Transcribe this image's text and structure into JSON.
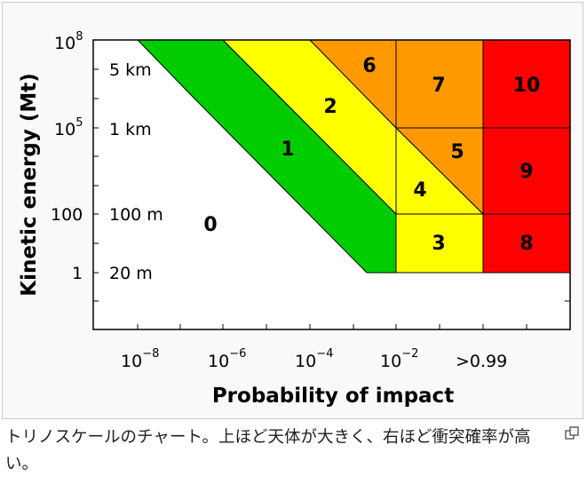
{
  "chart": {
    "xlabel": "Probability of impact",
    "ylabel": "Kinetic energy (Mt)",
    "y_ticks": [
      {
        "base": "10",
        "exp": "8"
      },
      {
        "base": "10",
        "exp": "5"
      },
      {
        "base": "100",
        "exp": ""
      },
      {
        "base": "1",
        "exp": ""
      }
    ],
    "x_ticks": [
      {
        "base": "10",
        "exp": "−8"
      },
      {
        "base": "10",
        "exp": "−6"
      },
      {
        "base": "10",
        "exp": "−4"
      },
      {
        "base": "10",
        "exp": "−2"
      },
      {
        "base": ">0.99",
        "exp": ""
      }
    ],
    "size_labels": [
      "5 km",
      "1 km",
      "100 m",
      "20 m"
    ],
    "zones": [
      {
        "label": "0",
        "color": "#ffffff"
      },
      {
        "label": "1",
        "color": "#00cc00"
      },
      {
        "label": "2",
        "color": "#ffff00"
      },
      {
        "label": "3",
        "color": "#ffff00"
      },
      {
        "label": "4",
        "color": "#ffff00"
      },
      {
        "label": "5",
        "color": "#ff9900"
      },
      {
        "label": "6",
        "color": "#ff9900"
      },
      {
        "label": "7",
        "color": "#ff9900"
      },
      {
        "label": "8",
        "color": "#ff0000"
      },
      {
        "label": "9",
        "color": "#ff0000"
      },
      {
        "label": "10",
        "color": "#ff0000"
      }
    ]
  },
  "caption": {
    "text": "トリノスケールのチャート。上ほど天体が大きく、右ほど衝突確率が高い。"
  }
}
